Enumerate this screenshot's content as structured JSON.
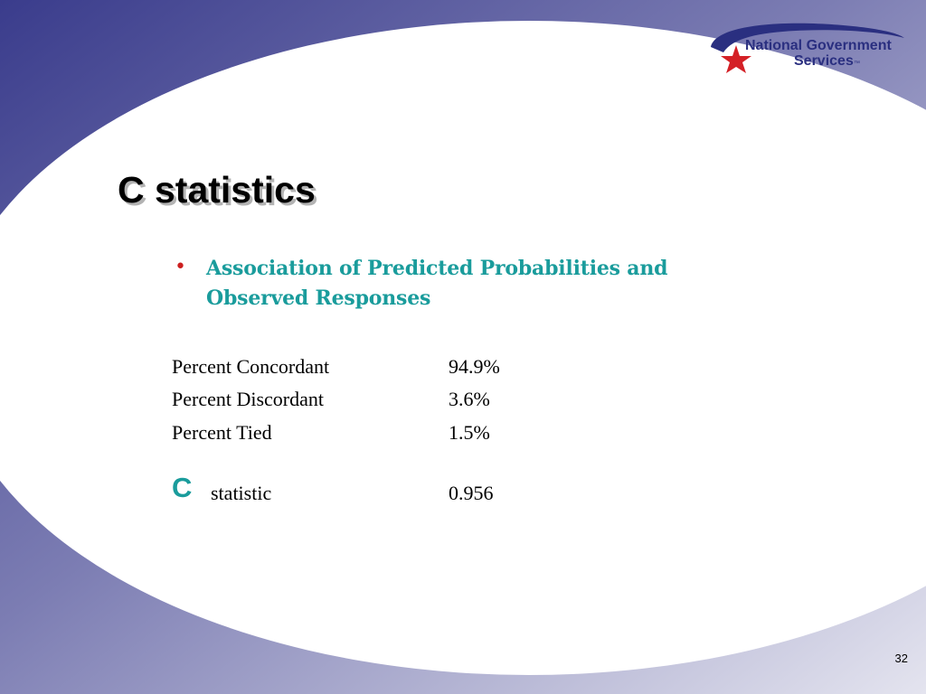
{
  "slide": {
    "title": "C statistics",
    "page_number": "32",
    "colors": {
      "band": "#4a4a96",
      "band_light": "#dcdcea",
      "title_shadow": "#b3b3b3",
      "accent_teal": "#1a9c9c",
      "bullet_red": "#cc1f1f"
    }
  },
  "logo": {
    "line1": "National Government",
    "line2": "Services",
    "trademark": "™",
    "icon": "red-star-swoosh-icon"
  },
  "bullet": {
    "symbol": "•",
    "text": "Association of Predicted Probabilities and Observed Responses"
  },
  "stats": [
    {
      "label": "Percent Concordant",
      "value": "94.9%"
    },
    {
      "label": "Percent Discordant",
      "value": "3.6%"
    },
    {
      "label": "Percent Tied",
      "value": "1.5%"
    }
  ],
  "c_statistic": {
    "letter": "C",
    "label": "statistic",
    "value": "0.956"
  }
}
